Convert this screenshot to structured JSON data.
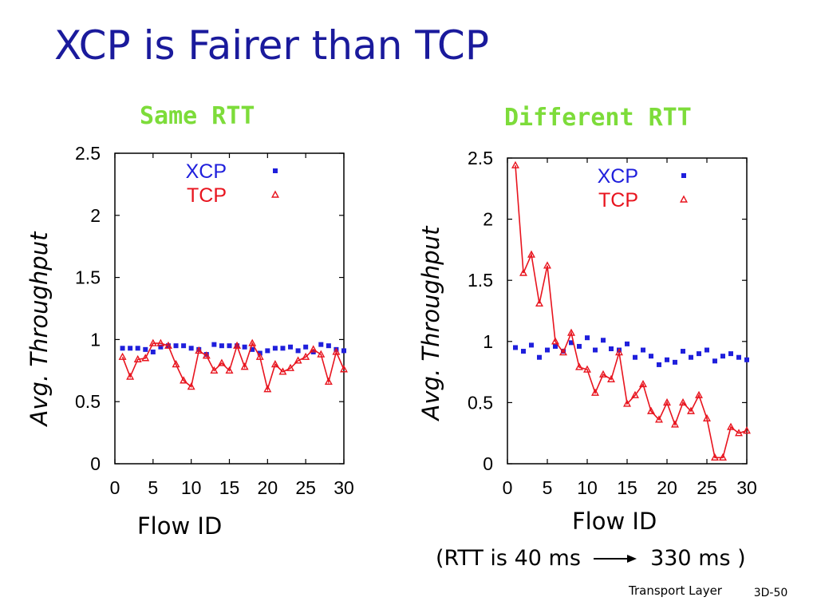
{
  "slide": {
    "title": "XCP is Fairer than TCP",
    "rtt_note_before": "(RTT is 40 ms",
    "rtt_note_after": "330 ms )",
    "footer": "Transport Layer",
    "page_number": "3D-50"
  },
  "colors": {
    "title": "#1a1a9c",
    "panel_title": "#7ddc3a",
    "xcp": "#1f1fdc",
    "tcp": "#e8141e"
  },
  "chart_data": [
    {
      "type": "scatter",
      "title": "Same RTT",
      "xlabel": "Flow ID",
      "ylabel": "Avg. Throughput",
      "xlim": [
        0,
        30
      ],
      "ylim": [
        0,
        2.5
      ],
      "xticks": [
        "0",
        "5",
        "10",
        "15",
        "20",
        "25",
        "30"
      ],
      "yticks": [
        "0",
        "0.5",
        "1",
        "1.5",
        "2",
        "2.5"
      ],
      "grid": false,
      "legend": "top-right",
      "series": [
        {
          "name": "XCP",
          "marker": "square",
          "line": false,
          "x": [
            1,
            2,
            3,
            4,
            5,
            6,
            7,
            8,
            9,
            10,
            11,
            12,
            13,
            14,
            15,
            16,
            17,
            18,
            19,
            20,
            21,
            22,
            23,
            24,
            25,
            26,
            27,
            28,
            29,
            30
          ],
          "y": [
            0.93,
            0.93,
            0.93,
            0.92,
            0.9,
            0.94,
            0.95,
            0.95,
            0.95,
            0.93,
            0.92,
            0.88,
            0.96,
            0.95,
            0.95,
            0.95,
            0.94,
            0.92,
            0.89,
            0.91,
            0.93,
            0.93,
            0.94,
            0.91,
            0.94,
            0.9,
            0.96,
            0.95,
            0.92,
            0.91
          ]
        },
        {
          "name": "TCP",
          "marker": "triangle",
          "line": true,
          "x": [
            1,
            2,
            3,
            4,
            5,
            6,
            7,
            8,
            9,
            10,
            11,
            12,
            13,
            14,
            15,
            16,
            17,
            18,
            19,
            20,
            21,
            22,
            23,
            24,
            25,
            26,
            27,
            28,
            29,
            30
          ],
          "y": [
            0.86,
            0.7,
            0.84,
            0.85,
            0.97,
            0.97,
            0.95,
            0.8,
            0.67,
            0.62,
            0.91,
            0.87,
            0.75,
            0.81,
            0.75,
            0.95,
            0.78,
            0.97,
            0.86,
            0.6,
            0.8,
            0.74,
            0.77,
            0.83,
            0.86,
            0.92,
            0.88,
            0.66,
            0.9,
            0.76
          ]
        }
      ]
    },
    {
      "type": "scatter",
      "title": "Different RTT",
      "xlabel": "Flow ID",
      "ylabel": "Avg. Throughput",
      "xlim": [
        0,
        30
      ],
      "ylim": [
        0,
        2.5
      ],
      "xticks": [
        "0",
        "5",
        "10",
        "15",
        "20",
        "25",
        "30"
      ],
      "yticks": [
        "0",
        "0.5",
        "1",
        "1.5",
        "2",
        "2.5"
      ],
      "grid": false,
      "legend": "top-right",
      "series": [
        {
          "name": "XCP",
          "marker": "square",
          "line": false,
          "x": [
            1,
            2,
            3,
            4,
            5,
            6,
            7,
            8,
            9,
            10,
            11,
            12,
            13,
            14,
            15,
            16,
            17,
            18,
            19,
            20,
            21,
            22,
            23,
            24,
            25,
            26,
            27,
            28,
            29,
            30
          ],
          "y": [
            0.95,
            0.92,
            0.97,
            0.87,
            0.93,
            0.96,
            0.92,
            0.99,
            0.96,
            1.03,
            0.93,
            1.01,
            0.94,
            0.93,
            0.98,
            0.87,
            0.93,
            0.88,
            0.81,
            0.85,
            0.83,
            0.92,
            0.87,
            0.9,
            0.93,
            0.84,
            0.88,
            0.9,
            0.87,
            0.85
          ]
        },
        {
          "name": "TCP",
          "marker": "triangle",
          "line": true,
          "x": [
            1,
            2,
            3,
            4,
            5,
            6,
            7,
            8,
            9,
            10,
            11,
            12,
            13,
            14,
            15,
            16,
            17,
            18,
            19,
            20,
            21,
            22,
            23,
            24,
            25,
            26,
            27,
            28,
            29,
            30
          ],
          "y": [
            2.44,
            1.56,
            1.71,
            1.31,
            1.62,
            1.0,
            0.91,
            1.07,
            0.79,
            0.77,
            0.58,
            0.73,
            0.69,
            0.91,
            0.49,
            0.56,
            0.65,
            0.43,
            0.36,
            0.5,
            0.32,
            0.5,
            0.43,
            0.56,
            0.37,
            0.05,
            0.05,
            0.3,
            0.25,
            0.27
          ]
        }
      ]
    }
  ]
}
